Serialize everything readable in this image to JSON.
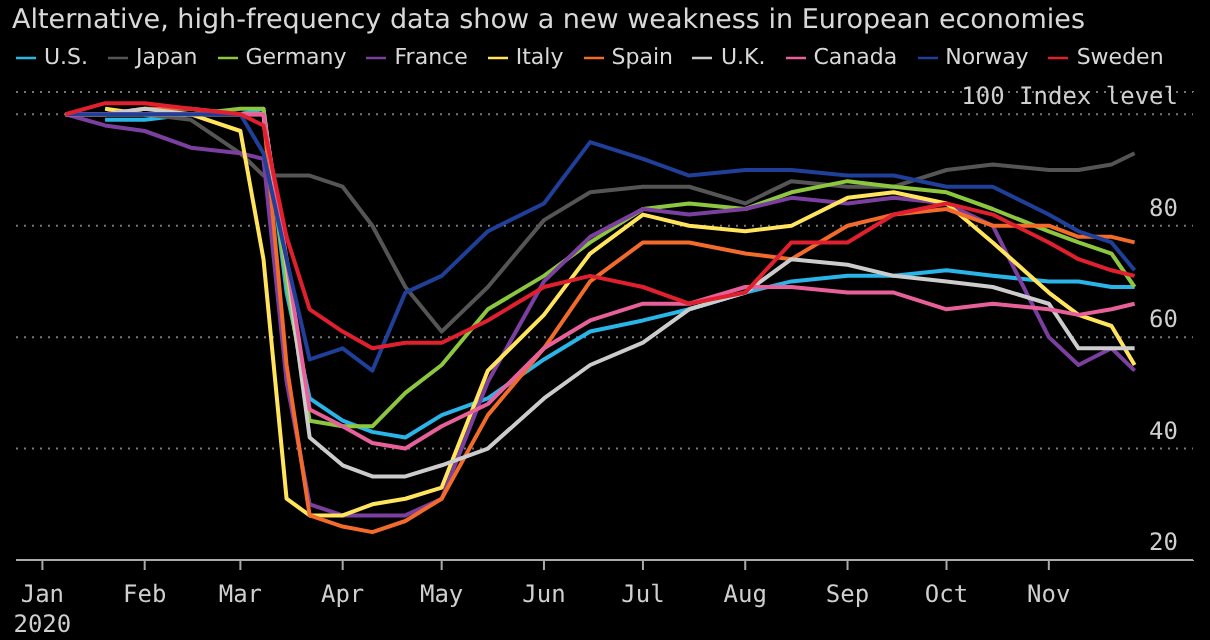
{
  "chart_data": {
    "type": "line",
    "title": "Alternative, high-frequency data show a new weakness in European economies",
    "x": [
      "2020-01-08",
      "2020-01-20",
      "2020-02-01",
      "2020-02-15",
      "2020-03-01",
      "2020-03-08",
      "2020-03-15",
      "2020-03-22",
      "2020-04-01",
      "2020-04-10",
      "2020-04-20",
      "2020-05-01",
      "2020-05-15",
      "2020-06-01",
      "2020-06-15",
      "2020-07-01",
      "2020-07-15",
      "2020-08-01",
      "2020-08-15",
      "2020-09-01",
      "2020-09-15",
      "2020-10-01",
      "2020-10-15",
      "2020-11-01",
      "2020-11-10",
      "2020-11-20",
      "2020-11-27"
    ],
    "series": [
      {
        "name": "U.S.",
        "color": "#29b5e8",
        "values": [
          null,
          99,
          99,
          100,
          100,
          101,
          68,
          49,
          45,
          43,
          42,
          46,
          49,
          56,
          61,
          63,
          65,
          68,
          70,
          71,
          71,
          72,
          71,
          70,
          70,
          69,
          69
        ]
      },
      {
        "name": "Japan",
        "color": "#555555",
        "values": [
          100,
          100,
          100,
          99,
          93,
          89,
          89,
          89,
          87,
          80,
          69,
          61,
          69,
          81,
          86,
          87,
          87,
          84,
          88,
          87,
          87,
          90,
          91,
          90,
          90,
          91,
          93
        ]
      },
      {
        "name": "Germany",
        "color": "#8dc63f",
        "values": [
          100,
          100,
          100,
          100,
          101,
          101,
          70,
          45,
          44,
          44,
          50,
          55,
          65,
          71,
          77,
          83,
          84,
          83,
          86,
          88,
          87,
          86,
          83,
          79,
          77,
          75,
          69
        ]
      },
      {
        "name": "France",
        "color": "#7b3fa0",
        "values": [
          100,
          98,
          97,
          94,
          93,
          92,
          52,
          30,
          28,
          28,
          28,
          31,
          52,
          70,
          78,
          83,
          82,
          83,
          85,
          84,
          85,
          84,
          80,
          60,
          55,
          58,
          54
        ]
      },
      {
        "name": "Italy",
        "color": "#ffe45c",
        "values": [
          null,
          101,
          100,
          100,
          97,
          74,
          31,
          28,
          28,
          30,
          31,
          33,
          54,
          64,
          75,
          82,
          80,
          79,
          80,
          85,
          86,
          84,
          77,
          68,
          64,
          62,
          55
        ]
      },
      {
        "name": "Spain",
        "color": "#f26b2a",
        "values": [
          100,
          100,
          101,
          101,
          100,
          100,
          55,
          28,
          26,
          25,
          27,
          31,
          46,
          58,
          70,
          77,
          77,
          75,
          74,
          80,
          82,
          83,
          80,
          80,
          78,
          78,
          77
        ]
      },
      {
        "name": "U.K.",
        "color": "#cccccc",
        "values": [
          100,
          100,
          101,
          100,
          100,
          100,
          73,
          42,
          37,
          35,
          35,
          37,
          40,
          49,
          55,
          59,
          65,
          68,
          74,
          73,
          71,
          70,
          69,
          66,
          58,
          58,
          58
        ]
      },
      {
        "name": "Canada",
        "color": "#e8609a",
        "values": [
          100,
          100,
          100,
          100,
          100,
          100,
          74,
          47,
          44,
          41,
          40,
          44,
          48,
          58,
          63,
          66,
          66,
          69,
          69,
          68,
          68,
          65,
          66,
          65,
          64,
          65,
          66
        ]
      },
      {
        "name": "Norway",
        "color": "#1f3f99",
        "values": [
          100,
          100,
          100,
          100,
          100,
          93,
          74,
          56,
          58,
          54,
          68,
          71,
          79,
          84,
          95,
          92,
          89,
          90,
          90,
          89,
          89,
          87,
          87,
          82,
          79,
          77,
          72
        ]
      },
      {
        "name": "Sweden",
        "color": "#e0202e",
        "values": [
          100,
          102,
          102,
          101,
          100,
          98,
          78,
          65,
          61,
          58,
          59,
          59,
          63,
          69,
          71,
          69,
          66,
          68,
          77,
          77,
          82,
          84,
          82,
          77,
          74,
          72,
          71
        ]
      }
    ],
    "xlim": [
      "2019-12-24",
      "2020-12-15"
    ],
    "xticks": [
      {
        "value": "2020-01-01",
        "label": "Jan\n2020"
      },
      {
        "value": "2020-02-01",
        "label": "Feb"
      },
      {
        "value": "2020-03-01",
        "label": "Mar"
      },
      {
        "value": "2020-04-01",
        "label": "Apr"
      },
      {
        "value": "2020-05-01",
        "label": "May"
      },
      {
        "value": "2020-06-01",
        "label": "Jun"
      },
      {
        "value": "2020-07-01",
        "label": "Jul"
      },
      {
        "value": "2020-08-01",
        "label": "Aug"
      },
      {
        "value": "2020-09-01",
        "label": "Sep"
      },
      {
        "value": "2020-10-01",
        "label": "Oct"
      },
      {
        "value": "2020-11-01",
        "label": "Nov"
      }
    ],
    "ylim": [
      20,
      104
    ],
    "yticks": [
      20,
      40,
      60,
      80,
      {
        "value": 100,
        "label": "100 Index level"
      }
    ],
    "grid": "y",
    "legend": "top",
    "line_style": "solid"
  }
}
